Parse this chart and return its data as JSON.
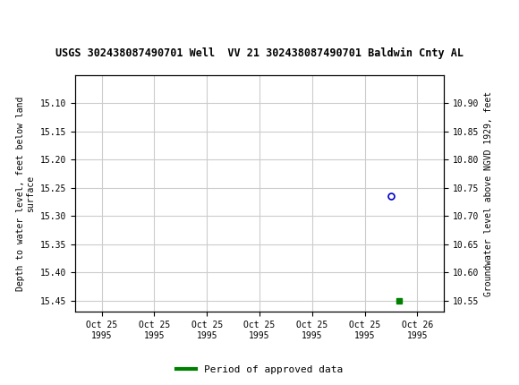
{
  "title": "USGS 302438087490701 Well  VV 21 302438087490701 Baldwin Cnty AL",
  "ylabel_left": "Depth to water level, feet below land\nsurface",
  "ylabel_right": "Groundwater level above NGVD 1929, feet",
  "ylim_left": [
    15.47,
    15.05
  ],
  "ylim_right": [
    10.53,
    10.95
  ],
  "yticks_left": [
    15.1,
    15.15,
    15.2,
    15.25,
    15.3,
    15.35,
    15.4,
    15.45
  ],
  "yticks_right": [
    10.9,
    10.85,
    10.8,
    10.75,
    10.7,
    10.65,
    10.6,
    10.55
  ],
  "xlim": [
    0,
    7
  ],
  "xtick_labels": [
    "Oct 25\n1995",
    "Oct 25\n1995",
    "Oct 25\n1995",
    "Oct 25\n1995",
    "Oct 25\n1995",
    "Oct 25\n1995",
    "Oct 26\n1995"
  ],
  "xtick_positions": [
    0.5,
    1.5,
    2.5,
    3.5,
    4.5,
    5.5,
    6.5
  ],
  "grid_color": "#cccccc",
  "background_color": "#ffffff",
  "header_color": "#006633",
  "font_color": "#000000",
  "point_unapproved_x": 6.0,
  "point_unapproved_y": 15.265,
  "point_unapproved_color": "#0000cc",
  "point_approved_x": 6.15,
  "point_approved_y": 15.45,
  "point_approved_color": "#008000",
  "legend_label": "Period of approved data",
  "legend_color": "#008000"
}
